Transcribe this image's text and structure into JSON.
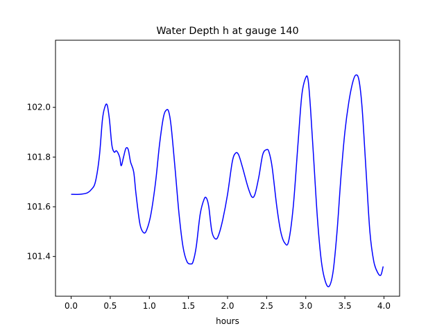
{
  "chart_data": {
    "type": "line",
    "title": "Water Depth h at gauge 140",
    "xlabel": "hours",
    "ylabel": "",
    "xlim": [
      -0.2,
      4.2
    ],
    "ylim": [
      101.24,
      102.27
    ],
    "x_ticks": [
      0.0,
      0.5,
      1.0,
      1.5,
      2.0,
      2.5,
      3.0,
      3.5,
      4.0
    ],
    "x_tick_labels": [
      "0.0",
      "0.5",
      "1.0",
      "1.5",
      "2.0",
      "2.5",
      "3.0",
      "3.5",
      "4.0"
    ],
    "y_ticks": [
      101.4,
      101.6,
      101.8,
      102.0
    ],
    "y_tick_labels": [
      "101.4",
      "101.6",
      "101.8",
      "102.0"
    ],
    "grid": false,
    "legend": "none",
    "series": [
      {
        "color": "#0000ff",
        "x": [
          0.0,
          0.1,
          0.2,
          0.26,
          0.31,
          0.36,
          0.4,
          0.43,
          0.46,
          0.49,
          0.52,
          0.55,
          0.58,
          0.62,
          0.64,
          0.67,
          0.7,
          0.73,
          0.76,
          0.8,
          0.83,
          0.88,
          0.93,
          0.97,
          1.02,
          1.08,
          1.13,
          1.18,
          1.22,
          1.25,
          1.28,
          1.33,
          1.38,
          1.43,
          1.48,
          1.53,
          1.56,
          1.6,
          1.65,
          1.7,
          1.73,
          1.76,
          1.8,
          1.85,
          1.89,
          1.94,
          2.0,
          2.06,
          2.1,
          2.14,
          2.19,
          2.26,
          2.31,
          2.35,
          2.4,
          2.45,
          2.5,
          2.53,
          2.57,
          2.63,
          2.68,
          2.73,
          2.78,
          2.84,
          2.9,
          2.95,
          3.0,
          3.03,
          3.06,
          3.1,
          3.15,
          3.2,
          3.25,
          3.3,
          3.35,
          3.4,
          3.45,
          3.5,
          3.55,
          3.6,
          3.64,
          3.68,
          3.72,
          3.77,
          3.82,
          3.87,
          3.92,
          3.96,
          3.99
        ],
        "y": [
          101.65,
          101.65,
          101.655,
          101.67,
          101.7,
          101.8,
          101.95,
          102.0,
          102.01,
          101.95,
          101.85,
          101.82,
          101.825,
          101.8,
          101.765,
          101.8,
          101.835,
          101.83,
          101.78,
          101.74,
          101.65,
          101.53,
          101.495,
          101.51,
          101.57,
          101.7,
          101.85,
          101.96,
          101.99,
          101.98,
          101.92,
          101.75,
          101.57,
          101.44,
          101.38,
          101.37,
          101.38,
          101.44,
          101.57,
          101.63,
          101.635,
          101.6,
          101.5,
          101.47,
          101.49,
          101.55,
          101.65,
          101.78,
          101.815,
          101.81,
          101.76,
          101.68,
          101.64,
          101.65,
          101.72,
          101.81,
          101.83,
          101.82,
          101.76,
          101.6,
          101.5,
          101.455,
          101.46,
          101.6,
          101.85,
          102.05,
          102.12,
          102.11,
          102.0,
          101.8,
          101.55,
          101.38,
          101.3,
          101.28,
          101.34,
          101.5,
          101.72,
          101.9,
          102.02,
          102.1,
          102.13,
          102.11,
          102.0,
          101.75,
          101.5,
          101.38,
          101.335,
          101.325,
          101.36
        ]
      }
    ]
  }
}
